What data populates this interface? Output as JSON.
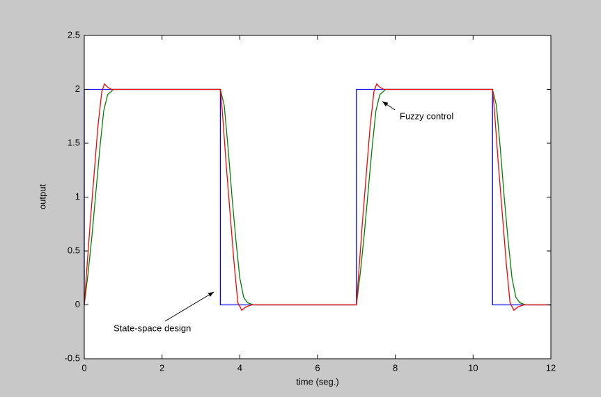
{
  "chart_data": {
    "type": "line",
    "xlabel": "time (seg.)",
    "ylabel": "output",
    "xlim": [
      0,
      12
    ],
    "ylim": [
      -0.5,
      2.5
    ],
    "xticks": [
      0,
      2,
      4,
      6,
      8,
      10,
      12
    ],
    "yticks": [
      -0.5,
      0,
      0.5,
      1,
      1.5,
      2,
      2.5
    ],
    "series": [
      {
        "color": "#0000ff",
        "x": [
          0,
          0,
          3.5,
          3.5,
          7,
          7,
          10.5,
          10.5,
          12
        ],
        "values": [
          0,
          2,
          2,
          0,
          0,
          2,
          2,
          0,
          0
        ]
      },
      {
        "color": "#008000",
        "x": [
          0,
          0.1,
          0.2,
          0.3,
          0.4,
          0.5,
          0.6,
          0.75,
          0.9,
          3.5,
          3.6,
          3.7,
          3.8,
          3.9,
          4.0,
          4.1,
          4.2,
          4.35,
          7,
          7.1,
          7.2,
          7.3,
          7.4,
          7.5,
          7.6,
          7.75,
          7.9,
          10.5,
          10.6,
          10.7,
          10.8,
          10.9,
          11.0,
          11.1,
          11.2,
          11.35,
          12
        ],
        "values": [
          0,
          0.3,
          0.65,
          1.05,
          1.45,
          1.8,
          1.95,
          2.0,
          2.0,
          2.0,
          1.85,
          1.45,
          1.0,
          0.6,
          0.25,
          0.07,
          0.02,
          0,
          0,
          0.3,
          0.65,
          1.05,
          1.45,
          1.8,
          1.95,
          2.0,
          2.0,
          2.0,
          1.85,
          1.45,
          1.0,
          0.6,
          0.25,
          0.07,
          0.02,
          0,
          0
        ]
      },
      {
        "color": "#ff0000",
        "x": [
          0,
          0.05,
          0.15,
          0.25,
          0.35,
          0.45,
          0.52,
          0.6,
          0.7,
          0.85,
          3.5,
          3.55,
          3.65,
          3.75,
          3.85,
          3.95,
          4.05,
          4.15,
          4.3,
          7,
          7.05,
          7.15,
          7.25,
          7.35,
          7.45,
          7.52,
          7.6,
          7.7,
          7.85,
          10.5,
          10.55,
          10.65,
          10.75,
          10.85,
          10.95,
          11.05,
          11.15,
          11.3,
          12
        ],
        "values": [
          0,
          0.25,
          0.75,
          1.2,
          1.65,
          1.98,
          2.05,
          2.02,
          2.0,
          2.0,
          2.0,
          1.8,
          1.3,
          0.85,
          0.4,
          0.02,
          -0.05,
          -0.02,
          0,
          0,
          0.25,
          0.75,
          1.2,
          1.65,
          1.98,
          2.05,
          2.02,
          2.0,
          2.0,
          2.0,
          1.8,
          1.3,
          0.85,
          0.4,
          0.02,
          -0.05,
          -0.02,
          0,
          0
        ]
      }
    ],
    "annotations": [
      "Fuzzy control",
      "State-space design"
    ]
  }
}
